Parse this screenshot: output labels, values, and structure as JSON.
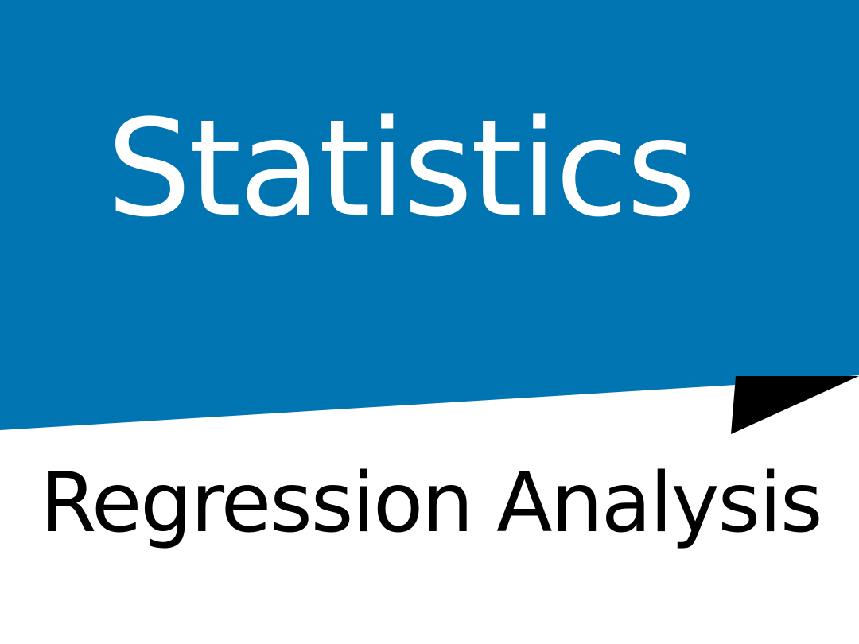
{
  "colors": {
    "banner_blue": "#0075B1",
    "fold_black": "#000000",
    "background": "#FFFFFF",
    "title_text": "#FFFFFF",
    "subtitle_text": "#000000"
  },
  "banner": {
    "title": "Statistics"
  },
  "subtitle": {
    "text": "Regression Analysis"
  }
}
